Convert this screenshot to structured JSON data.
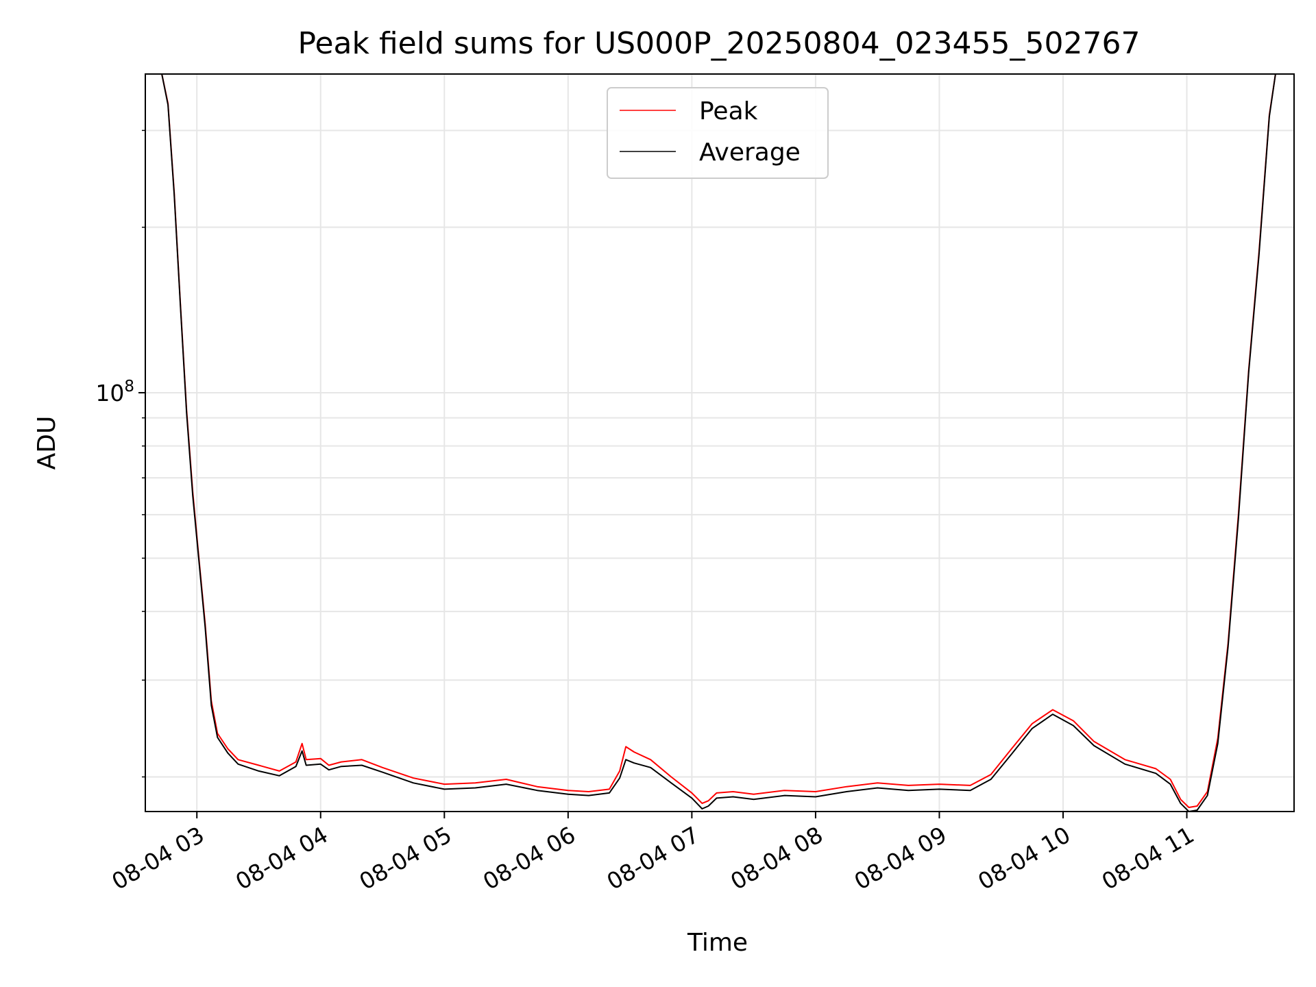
{
  "chart_data": {
    "type": "line",
    "title": "Peak field sums for US000P_20250804_023455_502767",
    "xlabel": "Time",
    "ylabel": "ADU",
    "yscale": "log",
    "xlim": [
      "2025-08-04 02:35",
      "2025-08-04 11:52"
    ],
    "ylim": [
      17300000,
      380000000
    ],
    "x_ticks": [
      "08-04 03",
      "08-04 04",
      "08-04 05",
      "08-04 06",
      "08-04 07",
      "08-04 08",
      "08-04 09",
      "08-04 10",
      "08-04 11"
    ],
    "x_tick_times": [
      "2025-08-04 03:00",
      "2025-08-04 04:00",
      "2025-08-04 05:00",
      "2025-08-04 06:00",
      "2025-08-04 07:00",
      "2025-08-04 08:00",
      "2025-08-04 09:00",
      "2025-08-04 10:00",
      "2025-08-04 11:00"
    ],
    "y_major_ticks": [
      {
        "value": 100000000,
        "base": "10",
        "exp": "8"
      }
    ],
    "y_minor_ticks": [
      20000000,
      30000000,
      40000000,
      50000000,
      60000000,
      70000000,
      80000000,
      90000000,
      200000000,
      300000000
    ],
    "grid": true,
    "legend_position": "top-center",
    "colors": {
      "Peak": "#ff0000",
      "Average": "#000000",
      "grid": "#e6e6e6"
    },
    "series": [
      {
        "name": "Peak",
        "x": [
          "2025-08-04 02:43",
          "2025-08-04 02:46",
          "2025-08-04 02:49",
          "2025-08-04 02:52",
          "2025-08-04 02:55",
          "2025-08-04 02:58",
          "2025-08-04 03:01",
          "2025-08-04 03:04",
          "2025-08-04 03:07",
          "2025-08-04 03:10",
          "2025-08-04 03:15",
          "2025-08-04 03:20",
          "2025-08-04 03:30",
          "2025-08-04 03:40",
          "2025-08-04 03:48",
          "2025-08-04 03:51",
          "2025-08-04 03:53",
          "2025-08-04 04:00",
          "2025-08-04 04:04",
          "2025-08-04 04:10",
          "2025-08-04 04:20",
          "2025-08-04 04:30",
          "2025-08-04 04:45",
          "2025-08-04 05:00",
          "2025-08-04 05:15",
          "2025-08-04 05:30",
          "2025-08-04 05:45",
          "2025-08-04 06:00",
          "2025-08-04 06:10",
          "2025-08-04 06:20",
          "2025-08-04 06:25",
          "2025-08-04 06:28",
          "2025-08-04 06:32",
          "2025-08-04 06:40",
          "2025-08-04 06:50",
          "2025-08-04 07:00",
          "2025-08-04 07:05",
          "2025-08-04 07:08",
          "2025-08-04 07:12",
          "2025-08-04 07:20",
          "2025-08-04 07:30",
          "2025-08-04 07:45",
          "2025-08-04 08:00",
          "2025-08-04 08:15",
          "2025-08-04 08:30",
          "2025-08-04 08:45",
          "2025-08-04 09:00",
          "2025-08-04 09:15",
          "2025-08-04 09:25",
          "2025-08-04 09:35",
          "2025-08-04 09:45",
          "2025-08-04 09:55",
          "2025-08-04 10:05",
          "2025-08-04 10:15",
          "2025-08-04 10:30",
          "2025-08-04 10:45",
          "2025-08-04 10:52",
          "2025-08-04 10:57",
          "2025-08-04 11:01",
          "2025-08-04 11:05",
          "2025-08-04 11:10",
          "2025-08-04 11:15",
          "2025-08-04 11:20",
          "2025-08-04 11:25",
          "2025-08-04 11:30",
          "2025-08-04 11:35",
          "2025-08-04 11:40",
          "2025-08-04 11:43",
          "2025-08-04 11:46"
        ],
        "values": [
          380000000,
          336000000,
          232000000,
          145000000,
          93000000,
          66000000,
          50000000,
          38000000,
          27500000,
          24000000,
          22500000,
          21500000,
          21000000,
          20500000,
          21300000,
          23000000,
          21500000,
          21600000,
          21000000,
          21300000,
          21500000,
          20800000,
          19900000,
          19400000,
          19500000,
          19800000,
          19200000,
          18900000,
          18800000,
          19000000,
          20500000,
          22700000,
          22200000,
          21500000,
          20000000,
          18700000,
          17900000,
          18100000,
          18700000,
          18800000,
          18600000,
          18900000,
          18800000,
          19200000,
          19500000,
          19300000,
          19400000,
          19300000,
          20200000,
          22500000,
          25000000,
          26500000,
          25300000,
          23200000,
          21500000,
          20700000,
          19800000,
          18200000,
          17600000,
          17700000,
          18800000,
          23500000,
          35000000,
          60000000,
          110000000,
          180000000,
          320000000,
          380000000,
          380000000
        ]
      },
      {
        "name": "Average",
        "x": [
          "2025-08-04 02:43",
          "2025-08-04 02:46",
          "2025-08-04 02:49",
          "2025-08-04 02:52",
          "2025-08-04 02:55",
          "2025-08-04 02:58",
          "2025-08-04 03:01",
          "2025-08-04 03:04",
          "2025-08-04 03:07",
          "2025-08-04 03:10",
          "2025-08-04 03:15",
          "2025-08-04 03:20",
          "2025-08-04 03:30",
          "2025-08-04 03:40",
          "2025-08-04 03:48",
          "2025-08-04 03:51",
          "2025-08-04 03:53",
          "2025-08-04 04:00",
          "2025-08-04 04:04",
          "2025-08-04 04:10",
          "2025-08-04 04:20",
          "2025-08-04 04:30",
          "2025-08-04 04:45",
          "2025-08-04 05:00",
          "2025-08-04 05:15",
          "2025-08-04 05:30",
          "2025-08-04 05:45",
          "2025-08-04 06:00",
          "2025-08-04 06:10",
          "2025-08-04 06:20",
          "2025-08-04 06:25",
          "2025-08-04 06:28",
          "2025-08-04 06:32",
          "2025-08-04 06:40",
          "2025-08-04 06:50",
          "2025-08-04 07:00",
          "2025-08-04 07:05",
          "2025-08-04 07:08",
          "2025-08-04 07:12",
          "2025-08-04 07:20",
          "2025-08-04 07:30",
          "2025-08-04 07:45",
          "2025-08-04 08:00",
          "2025-08-04 08:15",
          "2025-08-04 08:30",
          "2025-08-04 08:45",
          "2025-08-04 09:00",
          "2025-08-04 09:15",
          "2025-08-04 09:25",
          "2025-08-04 09:35",
          "2025-08-04 09:45",
          "2025-08-04 09:55",
          "2025-08-04 10:05",
          "2025-08-04 10:15",
          "2025-08-04 10:30",
          "2025-08-04 10:45",
          "2025-08-04 10:52",
          "2025-08-04 10:57",
          "2025-08-04 11:01",
          "2025-08-04 11:05",
          "2025-08-04 11:10",
          "2025-08-04 11:15",
          "2025-08-04 11:20",
          "2025-08-04 11:25",
          "2025-08-04 11:30",
          "2025-08-04 11:35",
          "2025-08-04 11:40",
          "2025-08-04 11:43",
          "2025-08-04 11:46"
        ],
        "values": [
          380000000,
          334000000,
          230000000,
          144000000,
          92000000,
          65000000,
          49500000,
          37500000,
          27000000,
          23600000,
          22100000,
          21100000,
          20500000,
          20100000,
          20900000,
          22300000,
          21000000,
          21100000,
          20600000,
          20900000,
          21000000,
          20400000,
          19500000,
          19000000,
          19100000,
          19400000,
          18900000,
          18600000,
          18500000,
          18700000,
          19900000,
          21500000,
          21200000,
          20800000,
          19500000,
          18300000,
          17500000,
          17700000,
          18300000,
          18400000,
          18200000,
          18500000,
          18400000,
          18800000,
          19100000,
          18900000,
          19000000,
          18900000,
          19800000,
          22000000,
          24500000,
          26000000,
          24800000,
          22800000,
          21100000,
          20300000,
          19400000,
          17900000,
          17300000,
          17400000,
          18500000,
          23000000,
          34500000,
          59000000,
          109000000,
          178000000,
          318000000,
          380000000,
          380000000
        ]
      }
    ]
  }
}
